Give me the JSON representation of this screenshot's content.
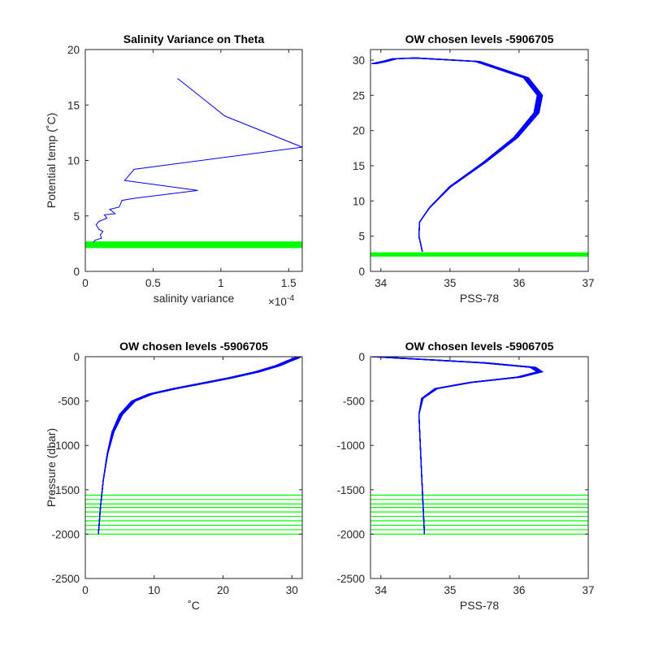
{
  "chart_data": [
    {
      "type": "line",
      "title": "Salinity Variance on Theta",
      "xlabel": "salinity variance",
      "ylabel": "Potential temp (˚C)",
      "x_exponent_label": "×10",
      "x_exponent": "-4",
      "xlim": [
        0,
        1.6
      ],
      "ylim": [
        0,
        20
      ],
      "xticks": [
        0,
        0.5,
        1,
        1.5
      ],
      "xtick_labels": [
        "0",
        "0.5",
        "1",
        "1.5"
      ],
      "yticks": [
        0,
        5,
        10,
        15,
        20
      ],
      "ytick_labels": [
        "0",
        "5",
        "10",
        "15",
        "20"
      ],
      "series": [
        {
          "color": "#0000ff",
          "x": [
            0.68,
            1.03,
            1.6,
            0.36,
            0.29,
            0.83,
            0.37,
            0.27,
            0.25,
            0.18,
            0.22,
            0.14,
            0.16,
            0.1,
            0.08,
            0.1,
            0.13,
            0.11,
            0.12,
            0.07,
            0.06
          ],
          "y": [
            17.4,
            14.0,
            11.2,
            9.2,
            8.2,
            7.3,
            6.6,
            6.4,
            5.8,
            5.6,
            5.2,
            5.1,
            4.8,
            4.5,
            4.2,
            3.8,
            3.6,
            3.3,
            3.0,
            2.8,
            2.6
          ]
        }
      ],
      "level_bands": [
        {
          "color": "#00ff00",
          "y_range": [
            2.1,
            2.7
          ]
        }
      ]
    },
    {
      "type": "line",
      "title": "OW chosen levels -5906705",
      "xlabel": "PSS-78",
      "ylabel": "",
      "xlim": [
        33.85,
        37
      ],
      "ylim": [
        0,
        31.5
      ],
      "xticks": [
        34,
        35,
        36,
        37
      ],
      "xtick_labels": [
        "34",
        "35",
        "36",
        "37"
      ],
      "yticks": [
        0,
        5,
        10,
        15,
        20,
        25,
        30
      ],
      "ytick_labels": [
        "0",
        "5",
        "10",
        "15",
        "20",
        "25",
        "30"
      ],
      "series": [
        {
          "color": "#0000ff",
          "x": [
            34.6,
            34.55,
            34.56,
            34.7,
            35.0,
            35.5,
            35.95,
            36.25,
            36.3,
            36.1,
            35.4,
            34.5,
            34.2,
            34.05,
            33.9
          ],
          "y": [
            2.8,
            5,
            7,
            9,
            12,
            15.5,
            19,
            22.5,
            25,
            27.5,
            29.8,
            30.3,
            30.2,
            29.8,
            29.5
          ]
        }
      ],
      "level_bands": [
        {
          "color": "#00ff00",
          "y_range": [
            2.1,
            2.7
          ]
        }
      ]
    },
    {
      "type": "line",
      "title": "OW chosen levels -5906705",
      "xlabel": "˚C",
      "ylabel": "Pressure (dbar)",
      "xlim": [
        0,
        31.5
      ],
      "ylim": [
        -2500,
        0
      ],
      "xticks": [
        0,
        10,
        20,
        30
      ],
      "xtick_labels": [
        "0",
        "10",
        "20",
        "30"
      ],
      "yticks": [
        -2500,
        -2000,
        -1500,
        -1000,
        -500,
        0
      ],
      "ytick_labels": [
        "-2500",
        "-2000",
        "-1500",
        "-1000",
        "-500",
        "0"
      ],
      "series": [
        {
          "color": "#0000ff",
          "x": [
            1.9,
            2.2,
            2.6,
            3.2,
            4.0,
            5.2,
            7.0,
            9.5,
            13,
            17,
            21,
            25,
            28,
            29.5,
            30.5,
            31
          ],
          "y": [
            -2000,
            -1700,
            -1400,
            -1100,
            -850,
            -650,
            -500,
            -420,
            -360,
            -300,
            -240,
            -170,
            -100,
            -50,
            -20,
            0
          ]
        }
      ],
      "chosen_levels": [
        -1560,
        -1610,
        -1660,
        -1700,
        -1750,
        -1800,
        -1850,
        -1900,
        -1950,
        -2000
      ]
    },
    {
      "type": "line",
      "title": "OW chosen levels -5906705",
      "xlabel": "PSS-78",
      "ylabel": "",
      "xlim": [
        33.85,
        37
      ],
      "ylim": [
        -2500,
        0
      ],
      "xticks": [
        34,
        35,
        36,
        37
      ],
      "xtick_labels": [
        "34",
        "35",
        "36",
        "37"
      ],
      "yticks": [
        -2500,
        -2000,
        -1500,
        -1000,
        -500,
        0
      ],
      "ytick_labels": [
        "-2500",
        "-2000",
        "-1500",
        "-1000",
        "-500",
        "0"
      ],
      "series": [
        {
          "color": "#0000ff",
          "x": [
            33.9,
            34.6,
            35.5,
            36.2,
            36.3,
            36.0,
            35.3,
            34.8,
            34.6,
            34.55,
            34.57,
            34.6,
            34.63
          ],
          "y": [
            0,
            -30,
            -70,
            -120,
            -170,
            -230,
            -290,
            -360,
            -470,
            -650,
            -1000,
            -1500,
            -2000
          ]
        }
      ],
      "chosen_levels": [
        -1560,
        -1610,
        -1660,
        -1700,
        -1750,
        -1800,
        -1850,
        -1900,
        -1950,
        -2000
      ]
    }
  ]
}
